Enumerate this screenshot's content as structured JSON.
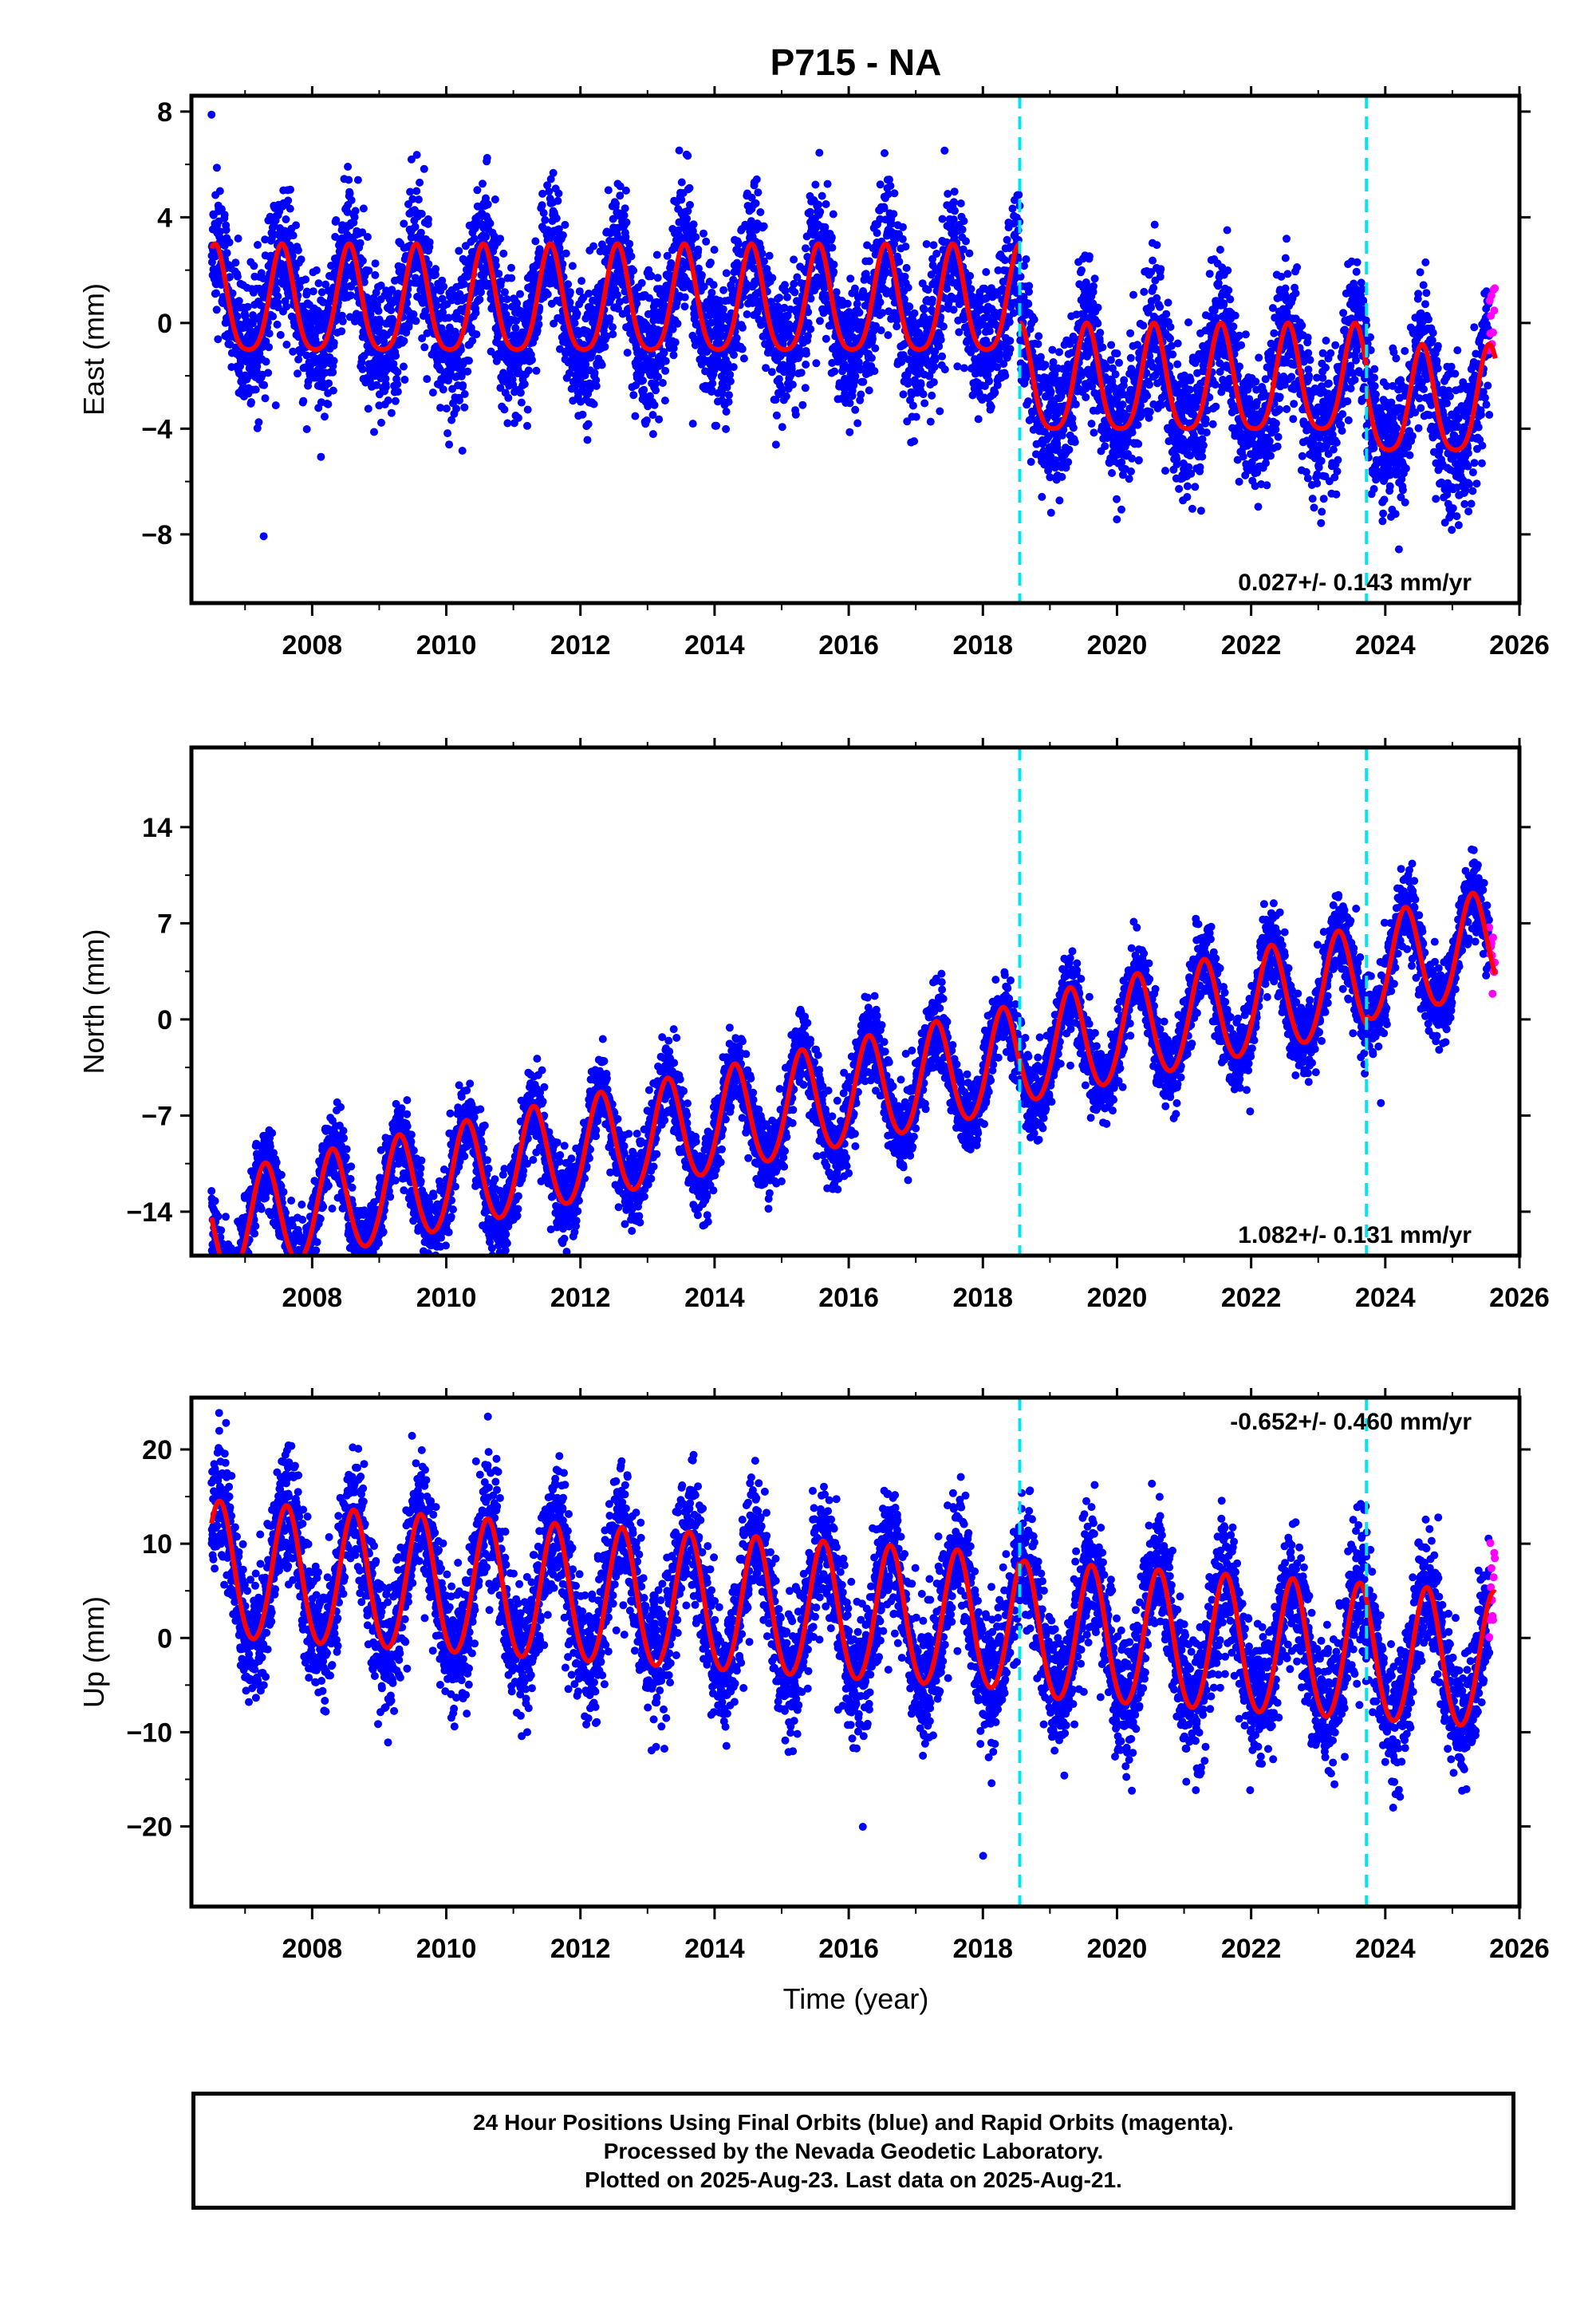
{
  "chart_data": {
    "type": "scatter",
    "title": "P715 - NA",
    "xlabel": "Time (year)",
    "xlim": [
      2006.2,
      2026.0
    ],
    "x_ticks": [
      "2008",
      "2010",
      "2012",
      "2014",
      "2016",
      "2018",
      "2020",
      "2022",
      "2024",
      "2026"
    ],
    "x_tick_values": [
      2008,
      2010,
      2012,
      2014,
      2016,
      2018,
      2020,
      2022,
      2024,
      2026
    ],
    "data_start": 2006.5,
    "data_end": 2025.64,
    "rapid_start": 2025.55,
    "events": [
      2018.55,
      2023.72
    ],
    "colors": {
      "final": "#0000ff",
      "rapid": "#ff00ff",
      "model": "#ff0000",
      "event": "#00e5ee",
      "axis": "#000000"
    },
    "panels": [
      {
        "name": "east",
        "ylabel": "East (mm)",
        "ylim": [
          -10.6,
          8.6
        ],
        "ticks": [
          -8,
          -4,
          0,
          4,
          8
        ],
        "tick_labels": [
          "−8",
          "−4",
          "0",
          "4",
          "8"
        ],
        "rate_label": "0.027+/- 0.143 mm/yr",
        "rate_position": "bottom-right",
        "model": {
          "segments": [
            {
              "start": 2006.5,
              "end": 2018.55,
              "offset": 0.6,
              "slope": 0.0
            },
            {
              "start": 2018.55,
              "end": 2023.72,
              "offset": -2.4,
              "slope": 0.0
            },
            {
              "start": 2023.72,
              "end": 2025.64,
              "offset": -3.2,
              "slope": 0.0
            }
          ],
          "amplitude": 2.0,
          "phase": 0.55,
          "semi_amplitude": 0.4
        },
        "scatter_sigma": 1.3
      },
      {
        "name": "north",
        "ylabel": "North (mm)",
        "ylim": [
          -17.2,
          19.8
        ],
        "ticks": [
          -14,
          -7,
          0,
          7,
          14
        ],
        "tick_labels": [
          "−14",
          "−7",
          "0",
          "7",
          "14"
        ],
        "rate_label": "1.082+/- 0.131 mm/yr",
        "rate_position": "bottom-right",
        "model": {
          "segments": [
            {
              "start": 2006.5,
              "end": 2018.55,
              "offset": -9.7,
              "slope": 1.03
            },
            {
              "start": 2018.55,
              "end": 2023.72,
              "offset": -9.3,
              "slope": 1.03
            },
            {
              "start": 2023.72,
              "end": 2025.64,
              "offset": -8.6,
              "slope": 1.03
            }
          ],
          "amplitude": 3.8,
          "phase": 0.3,
          "semi_amplitude": 0.3
        },
        "scatter_sigma": 1.4
      },
      {
        "name": "up",
        "ylabel": "Up (mm)",
        "ylim": [
          -28.5,
          25.5
        ],
        "ticks": [
          -20,
          -10,
          0,
          10,
          20
        ],
        "tick_labels": [
          "−20",
          "−10",
          "0",
          "10",
          "20"
        ],
        "rate_label": "-0.652+/- 0.460 mm/yr",
        "rate_position": "top-right",
        "model": {
          "segments": [
            {
              "start": 2006.5,
              "end": 2018.55,
              "offset": 4.3,
              "slope": -0.47
            },
            {
              "start": 2018.55,
              "end": 2023.72,
              "offset": 3.6,
              "slope": -0.47
            },
            {
              "start": 2023.72,
              "end": 2025.64,
              "offset": 3.6,
              "slope": -0.47
            }
          ],
          "amplitude": 7.2,
          "phase": 0.62,
          "semi_amplitude": 0.5
        },
        "scatter_sigma": 3.4
      }
    ]
  },
  "caption": {
    "line1": "24 Hour Positions Using Final Orbits (blue) and Rapid Orbits (magenta).",
    "line2": "Processed by the Nevada Geodetic Laboratory.",
    "line3": "Plotted on 2025-Aug-23. Last data on 2025-Aug-21."
  }
}
